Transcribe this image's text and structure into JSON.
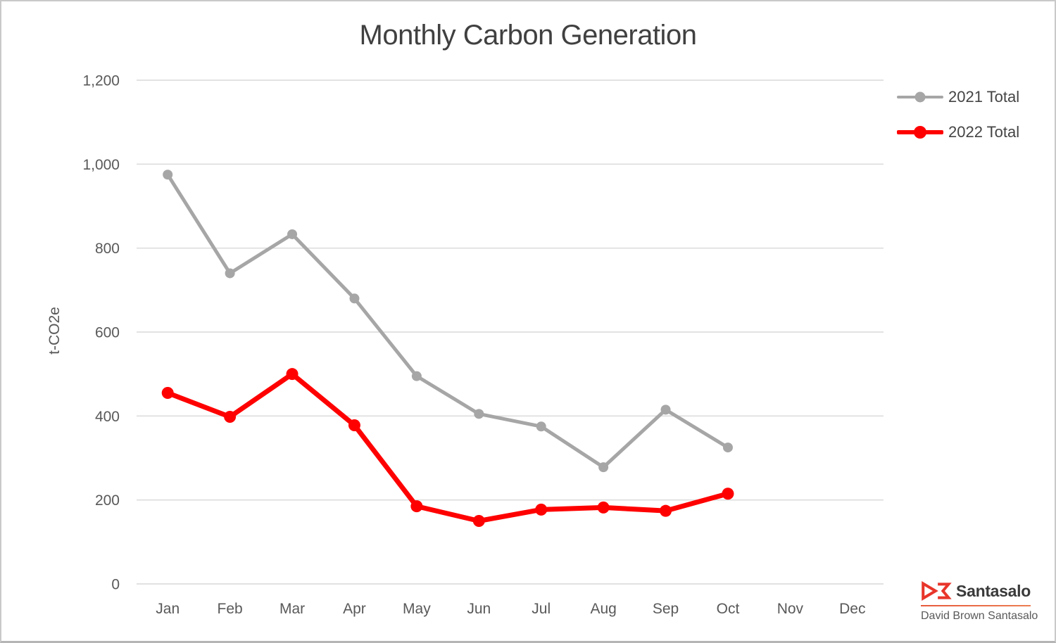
{
  "chart_data": {
    "type": "line",
    "title": "Monthly Carbon Generation",
    "ylabel": "t-CO2e",
    "xlabel": "",
    "categories": [
      "Jan",
      "Feb",
      "Mar",
      "Apr",
      "May",
      "Jun",
      "Jul",
      "Aug",
      "Sep",
      "Oct",
      "Nov",
      "Dec"
    ],
    "series": [
      {
        "name": "2021 Total",
        "color": "#a6a6a6",
        "values": [
          975,
          740,
          833,
          680,
          495,
          405,
          375,
          278,
          415,
          325,
          null,
          null
        ]
      },
      {
        "name": "2022 Total",
        "color": "#ff0000",
        "values": [
          455,
          398,
          500,
          378,
          185,
          150,
          177,
          182,
          174,
          215,
          null,
          null
        ]
      }
    ],
    "ylim": [
      0,
      1200
    ],
    "ytick_step": 200,
    "yticks": [
      "0",
      "200",
      "400",
      "600",
      "800",
      "1,000",
      "1,200"
    ],
    "grid": "horizontal",
    "gridline_color": "#d9d9d9",
    "legend_position": "right-top",
    "title_color": "#404040",
    "axis_text_color": "#595959"
  },
  "brand": {
    "name": "Santasalo",
    "subtitle": "David Brown Santasalo",
    "logo_icon": "db-mark",
    "logo_color": "#e8352a"
  }
}
